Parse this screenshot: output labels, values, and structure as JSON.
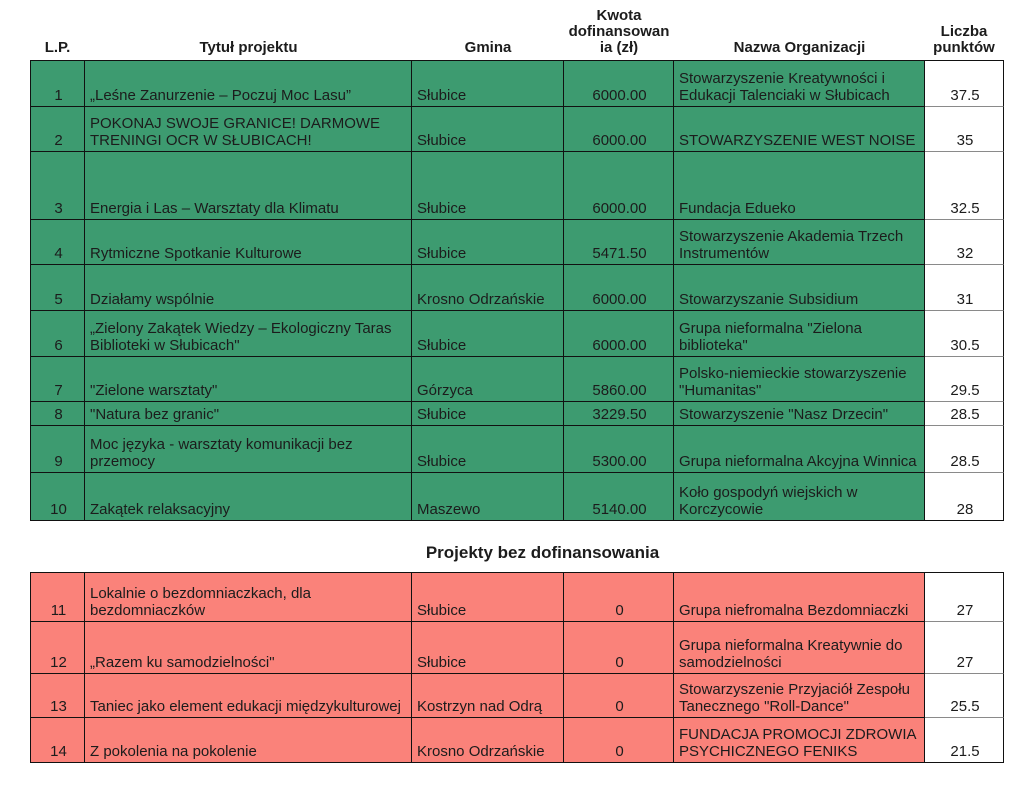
{
  "header": {
    "lp": "L.P.",
    "title": "Tytuł projektu",
    "gmina": "Gmina",
    "amount": "Kwota\ndofinansowan\nia (zł)",
    "organization": "Nazwa Organizacji",
    "points": "Liczba\npunktów"
  },
  "section2_title": "Projekty bez dofinansowania",
  "colors": {
    "funded_row_bg": "#3D9B70",
    "rejected_row_bg": "#FA827A",
    "points_cell_bg": "#FFFFFF",
    "border": "#111111"
  },
  "funded_projects": [
    {
      "lp": "1",
      "title": "„Leśne Zanurzenie – Poczuj Moc Lasu”",
      "gmina": "Słubice",
      "amount": "6000.00",
      "organization": "Stowarzyszenie Kreatywności i Edukacji Talenciaki w Słubicach",
      "points": "37.5"
    },
    {
      "lp": "2",
      "title": "POKONAJ SWOJE GRANICE! DARMOWE TRENINGI OCR W SŁUBICACH!",
      "gmina": "Słubice",
      "amount": "6000.00",
      "organization": "STOWARZYSZENIE WEST NOISE",
      "points": "35"
    },
    {
      "lp": "3",
      "title": "Energia i Las – Warsztaty dla Klimatu",
      "gmina": "Słubice",
      "amount": "6000.00",
      "organization": "Fundacja Edueko",
      "points": "32.5"
    },
    {
      "lp": "4",
      "title": "Rytmiczne Spotkanie Kulturowe",
      "gmina": "Słubice",
      "amount": "5471.50",
      "organization": "Stowarzyszenie Akademia Trzech Instrumentów",
      "points": "32"
    },
    {
      "lp": "5",
      "title": "Działamy wspólnie",
      "gmina": "Krosno Odrzańskie",
      "amount": "6000.00",
      "organization": "Stowarzyszanie Subsidium",
      "points": "31"
    },
    {
      "lp": "6",
      "title": "„Zielony Zakątek Wiedzy – Ekologiczny Taras Biblioteki w Słubicach\"",
      "gmina": "Słubice",
      "amount": "6000.00",
      "organization": "Grupa nieformalna \"Zielona biblioteka\"",
      "points": "30.5"
    },
    {
      "lp": "7",
      "title": "\"Zielone warsztaty\"",
      "gmina": "Górzyca",
      "amount": "5860.00",
      "organization": "Polsko-niemieckie stowarzyszenie \"Humanitas\"",
      "points": "29.5"
    },
    {
      "lp": "8",
      "title": "\"Natura bez granic\"",
      "gmina": "Słubice",
      "amount": "3229.50",
      "organization": "Stowarzyszenie \"Nasz Drzecin\"",
      "points": "28.5"
    },
    {
      "lp": "9",
      "title": "Moc języka - warsztaty komunikacji bez przemocy",
      "gmina": "Słubice",
      "amount": "5300.00",
      "organization": "Grupa nieformalna  Akcyjna Winnica",
      "points": "28.5"
    },
    {
      "lp": "10",
      "title": "Zakątek relaksacyjny",
      "gmina": "Maszewo",
      "amount": "5140.00",
      "organization": "Koło gospodyń wiejskich w Korczycowie",
      "points": "28"
    }
  ],
  "rejected_projects": [
    {
      "lp": "11",
      "title": "Lokalnie o bezdomniaczkach, dla bezdomniaczków",
      "gmina": "Słubice",
      "amount": "0",
      "organization": "Grupa niefromalna Bezdomniaczki",
      "points": "27"
    },
    {
      "lp": "12",
      "title": "„Razem ku samodzielności\"",
      "gmina": "Słubice",
      "amount": "0",
      "organization": "Grupa nieformalna Kreatywnie do samodzielności",
      "points": "27"
    },
    {
      "lp": "13",
      "title": "Taniec jako element edukacji międzykulturowej",
      "gmina": "Kostrzyn nad Odrą",
      "amount": "0",
      "organization": "Stowarzyszenie Przyjaciół Zespołu Tanecznego \"Roll-Dance\"",
      "points": "25.5"
    },
    {
      "lp": "14",
      "title": "Z pokolenia na pokolenie",
      "gmina": "Krosno Odrzańskie",
      "amount": "0",
      "organization": "FUNDACJA PROMOCJI ZDROWIA PSYCHICZNEGO FENIKS",
      "points": "21.5"
    }
  ]
}
